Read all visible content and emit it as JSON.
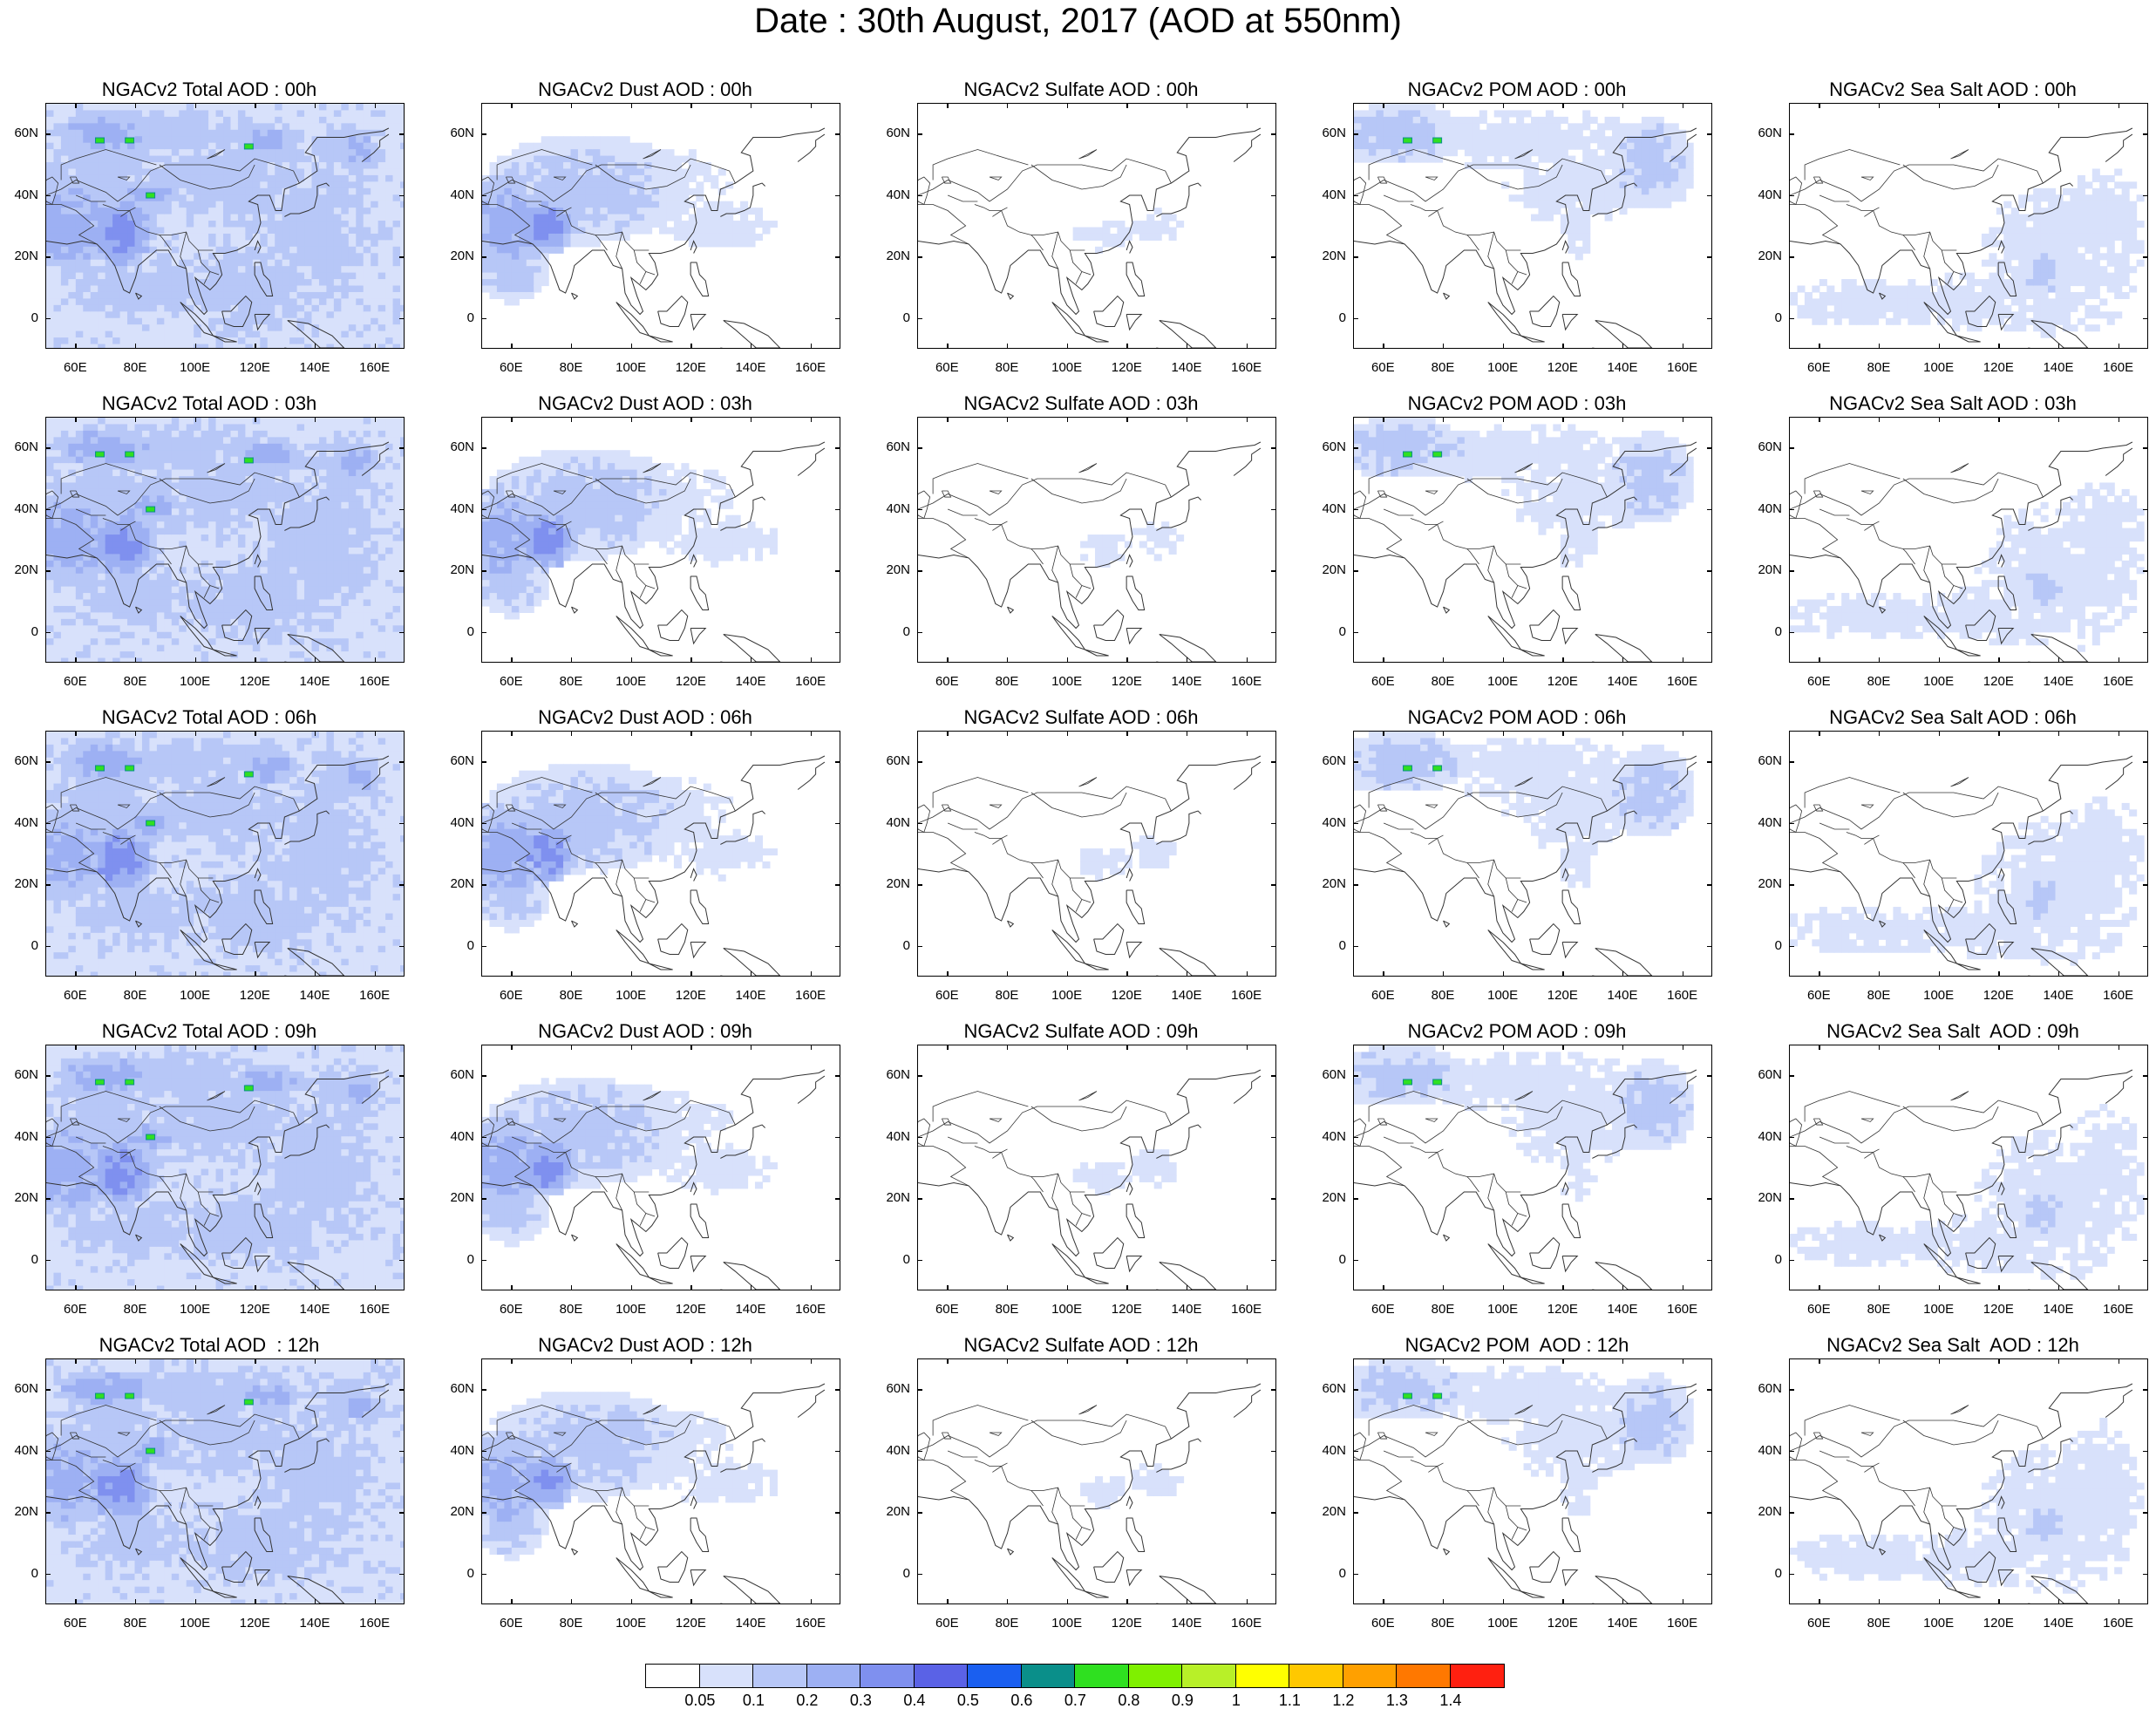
{
  "title": "Date : 30th August, 2017 (AOD at 550nm)",
  "axis": {
    "lat_ticks": [
      "60N",
      "40N",
      "20N",
      "0"
    ],
    "lat_values": [
      60,
      40,
      20,
      0
    ],
    "lon_ticks": [
      "60E",
      "80E",
      "100E",
      "120E",
      "140E",
      "160E"
    ],
    "lon_values": [
      60,
      80,
      100,
      120,
      140,
      160
    ],
    "lon_range": [
      50,
      170
    ],
    "lat_range": [
      -10,
      70
    ]
  },
  "panels": [
    [
      {
        "title": "NGACv2 Total AOD : 00h",
        "kind": "total"
      },
      {
        "title": "NGACv2 Dust AOD : 00h",
        "kind": "dust"
      },
      {
        "title": "NGACv2 Sulfate AOD : 00h",
        "kind": "sulfate"
      },
      {
        "title": "NGACv2 POM AOD : 00h",
        "kind": "pom"
      },
      {
        "title": "NGACv2 Sea Salt AOD : 00h",
        "kind": "seasalt"
      }
    ],
    [
      {
        "title": "NGACv2 Total AOD : 03h",
        "kind": "total"
      },
      {
        "title": "NGACv2 Dust AOD : 03h",
        "kind": "dust"
      },
      {
        "title": "NGACv2 Sulfate AOD : 03h",
        "kind": "sulfate"
      },
      {
        "title": "NGACv2 POM AOD : 03h",
        "kind": "pom"
      },
      {
        "title": "NGACv2 Sea Salt AOD : 03h",
        "kind": "seasalt"
      }
    ],
    [
      {
        "title": "NGACv2 Total AOD : 06h",
        "kind": "total"
      },
      {
        "title": "NGACv2 Dust AOD : 06h",
        "kind": "dust"
      },
      {
        "title": "NGACv2 Sulfate AOD : 06h",
        "kind": "sulfate"
      },
      {
        "title": "NGACv2 POM AOD : 06h",
        "kind": "pom"
      },
      {
        "title": "NGACv2 Sea Salt AOD : 06h",
        "kind": "seasalt"
      }
    ],
    [
      {
        "title": "NGACv2 Total AOD : 09h",
        "kind": "total"
      },
      {
        "title": "NGACv2 Dust AOD : 09h",
        "kind": "dust"
      },
      {
        "title": "NGACv2 Sulfate AOD : 09h",
        "kind": "sulfate"
      },
      {
        "title": "NGACv2 POM AOD : 09h",
        "kind": "pom"
      },
      {
        "title": "NGACv2 Sea Salt  AOD : 09h",
        "kind": "seasalt"
      }
    ],
    [
      {
        "title": "NGACv2 Total AOD  : 12h",
        "kind": "total"
      },
      {
        "title": "NGACv2 Dust AOD : 12h",
        "kind": "dust"
      },
      {
        "title": "NGACv2 Sulfate AOD : 12h",
        "kind": "sulfate"
      },
      {
        "title": "NGACv2 POM  AOD : 12h",
        "kind": "pom"
      },
      {
        "title": "NGACv2 Sea Salt  AOD : 12h",
        "kind": "seasalt"
      }
    ]
  ],
  "colorbar": {
    "labels": [
      "0.05",
      "0.1",
      "0.2",
      "0.3",
      "0.4",
      "0.5",
      "0.6",
      "0.7",
      "0.8",
      "0.9",
      "1",
      "1.1",
      "1.2",
      "1.3",
      "1.4"
    ],
    "colors": [
      "#ffffff",
      "#d8e1fb",
      "#b7c7f7",
      "#9db0f3",
      "#7f90ef",
      "#5a62e6",
      "#1a5ff0",
      "#0a8f8a",
      "#2fe020",
      "#7ff000",
      "#b8f028",
      "#ffff00",
      "#ffc800",
      "#ffa000",
      "#ff7800",
      "#ff2010"
    ]
  }
}
